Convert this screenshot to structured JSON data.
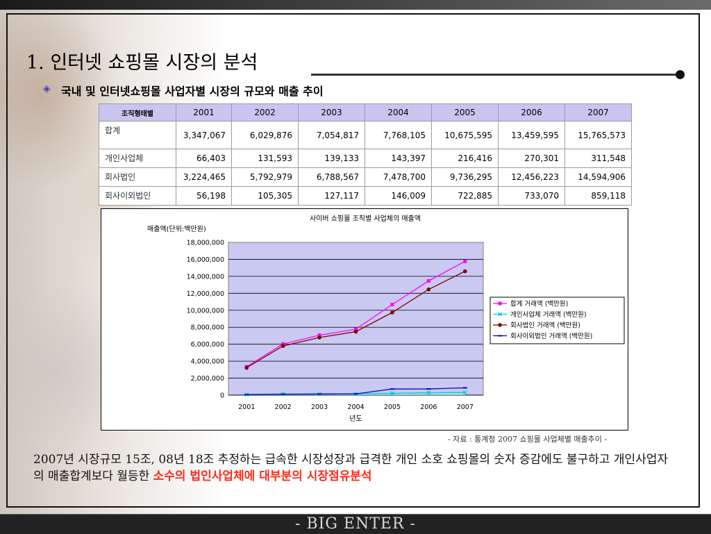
{
  "title": "1. 인터넷 쇼핑몰 시장의 분석",
  "subtitle": "국내 및 인터넷쇼핑몰 사업자별 시장의 규모와 매출 추이",
  "bullet_icon": "diamond-bullet-icon",
  "table": {
    "header": [
      "조직형태별",
      "2001",
      "2002",
      "2003",
      "2004",
      "2005",
      "2006",
      "2007"
    ],
    "rows": [
      {
        "label": "합계",
        "values": [
          "3,347,067",
          "6,029,876",
          "7,054,817",
          "7,768,105",
          "10,675,595",
          "13,459,595",
          "15,765,573"
        ]
      },
      {
        "label": "개인사업체",
        "values": [
          "66,403",
          "131,593",
          "139,133",
          "143,397",
          "216,416",
          "270,301",
          "311,548"
        ]
      },
      {
        "label": "회사법인",
        "values": [
          "3,224,465",
          "5,792,979",
          "6,788,567",
          "7,478,700",
          "9,736,295",
          "12,456,223",
          "14,594,906"
        ]
      },
      {
        "label": "회사이외법인",
        "values": [
          "56,198",
          "105,305",
          "127,117",
          "146,009",
          "722,885",
          "733,070",
          "859,118"
        ]
      }
    ]
  },
  "chart_data": {
    "type": "line",
    "title": "사이버 쇼핑몰 조직별 사업체의 매출액",
    "ylabel": "매출액(단위:백만원)",
    "xlabel": "년도",
    "x": [
      "2001",
      "2002",
      "2003",
      "2004",
      "2005",
      "2006",
      "2007"
    ],
    "yticks": [
      "18,000,000",
      "16,000,000",
      "14,000,000",
      "12,000,000",
      "10,000,000",
      "8,000,000",
      "6,000,000",
      "4,000,000",
      "2,000,000",
      "0"
    ],
    "ylim": [
      0,
      18000000
    ],
    "grid": true,
    "legend_position": "right",
    "plot_background": "#c9c9f2",
    "series": [
      {
        "name": "합계 거래액 (백만원)",
        "color": "#ff00ff",
        "marker": "square",
        "values": [
          3347067,
          6029876,
          7054817,
          7768105,
          10675595,
          13459595,
          15765573
        ]
      },
      {
        "name": "개인사업체 거래액 (백만원)",
        "color": "#00cccc",
        "marker": "x",
        "values": [
          66403,
          131593,
          139133,
          143397,
          216416,
          270301,
          311548
        ]
      },
      {
        "name": "회사법인 거래액 (백만원)",
        "color": "#800000",
        "marker": "circle",
        "values": [
          3224465,
          5792979,
          6788567,
          7478700,
          9736295,
          12456223,
          14594906
        ]
      },
      {
        "name": "회사이외법인 거래액 (백만원)",
        "color": "#0000cc",
        "marker": "dash",
        "values": [
          56198,
          105305,
          127117,
          146009,
          722885,
          733070,
          859118
        ]
      }
    ]
  },
  "source_note": "- 자료 : 통계청 2007 쇼핑몰 사업체별 매출추이 -",
  "body": {
    "text": "2007년 시장규모 15조, 08년 18조 추정하는 급속한 시장성장과 급격한 개인 소호 쇼핑몰의 숫자 증감에도 불구하고 개인사업자의 매출합계보다 월등한 ",
    "highlight": "소수의 법인사업체에 대부분의 시장점유분석",
    "highlight_color": "#ff2a1a"
  },
  "footer": "-  BIG ENTER -"
}
